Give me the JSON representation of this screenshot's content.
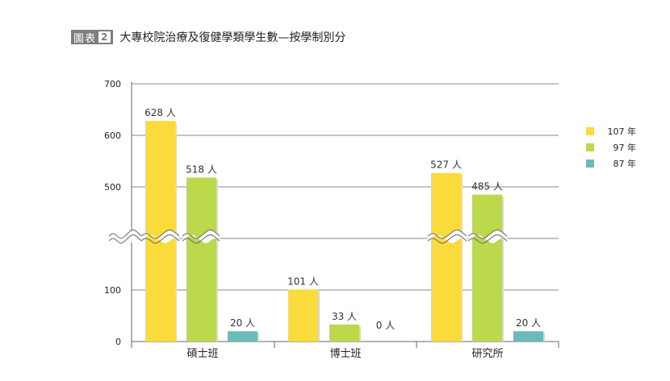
{
  "figure_tag": {
    "label": "圖表",
    "number": "2"
  },
  "chart_data": {
    "type": "bar",
    "title": "大專校院治療及復健學類學生數—按學制別分",
    "categories": [
      "碩士班",
      "博士班",
      "研究所"
    ],
    "series": [
      {
        "name": "107 年",
        "values": [
          628,
          101,
          527
        ],
        "labels": [
          "628 人",
          "101 人",
          "527 人"
        ]
      },
      {
        "name": "97 年",
        "values": [
          518,
          33,
          485
        ],
        "labels": [
          "518 人",
          "33 人",
          "485 人"
        ]
      },
      {
        "name": "87 年",
        "values": [
          20,
          0,
          20
        ],
        "labels": [
          "20 人",
          "0 人",
          "20 人"
        ]
      }
    ],
    "y_ticks": [
      "0",
      "100",
      "500",
      "600",
      "700"
    ],
    "axis_break": true,
    "grid": true,
    "legend_position": "right",
    "colors": {
      "s107": "#fadb3c",
      "s97": "#bcd84b",
      "s87": "#6bbbb8"
    }
  }
}
